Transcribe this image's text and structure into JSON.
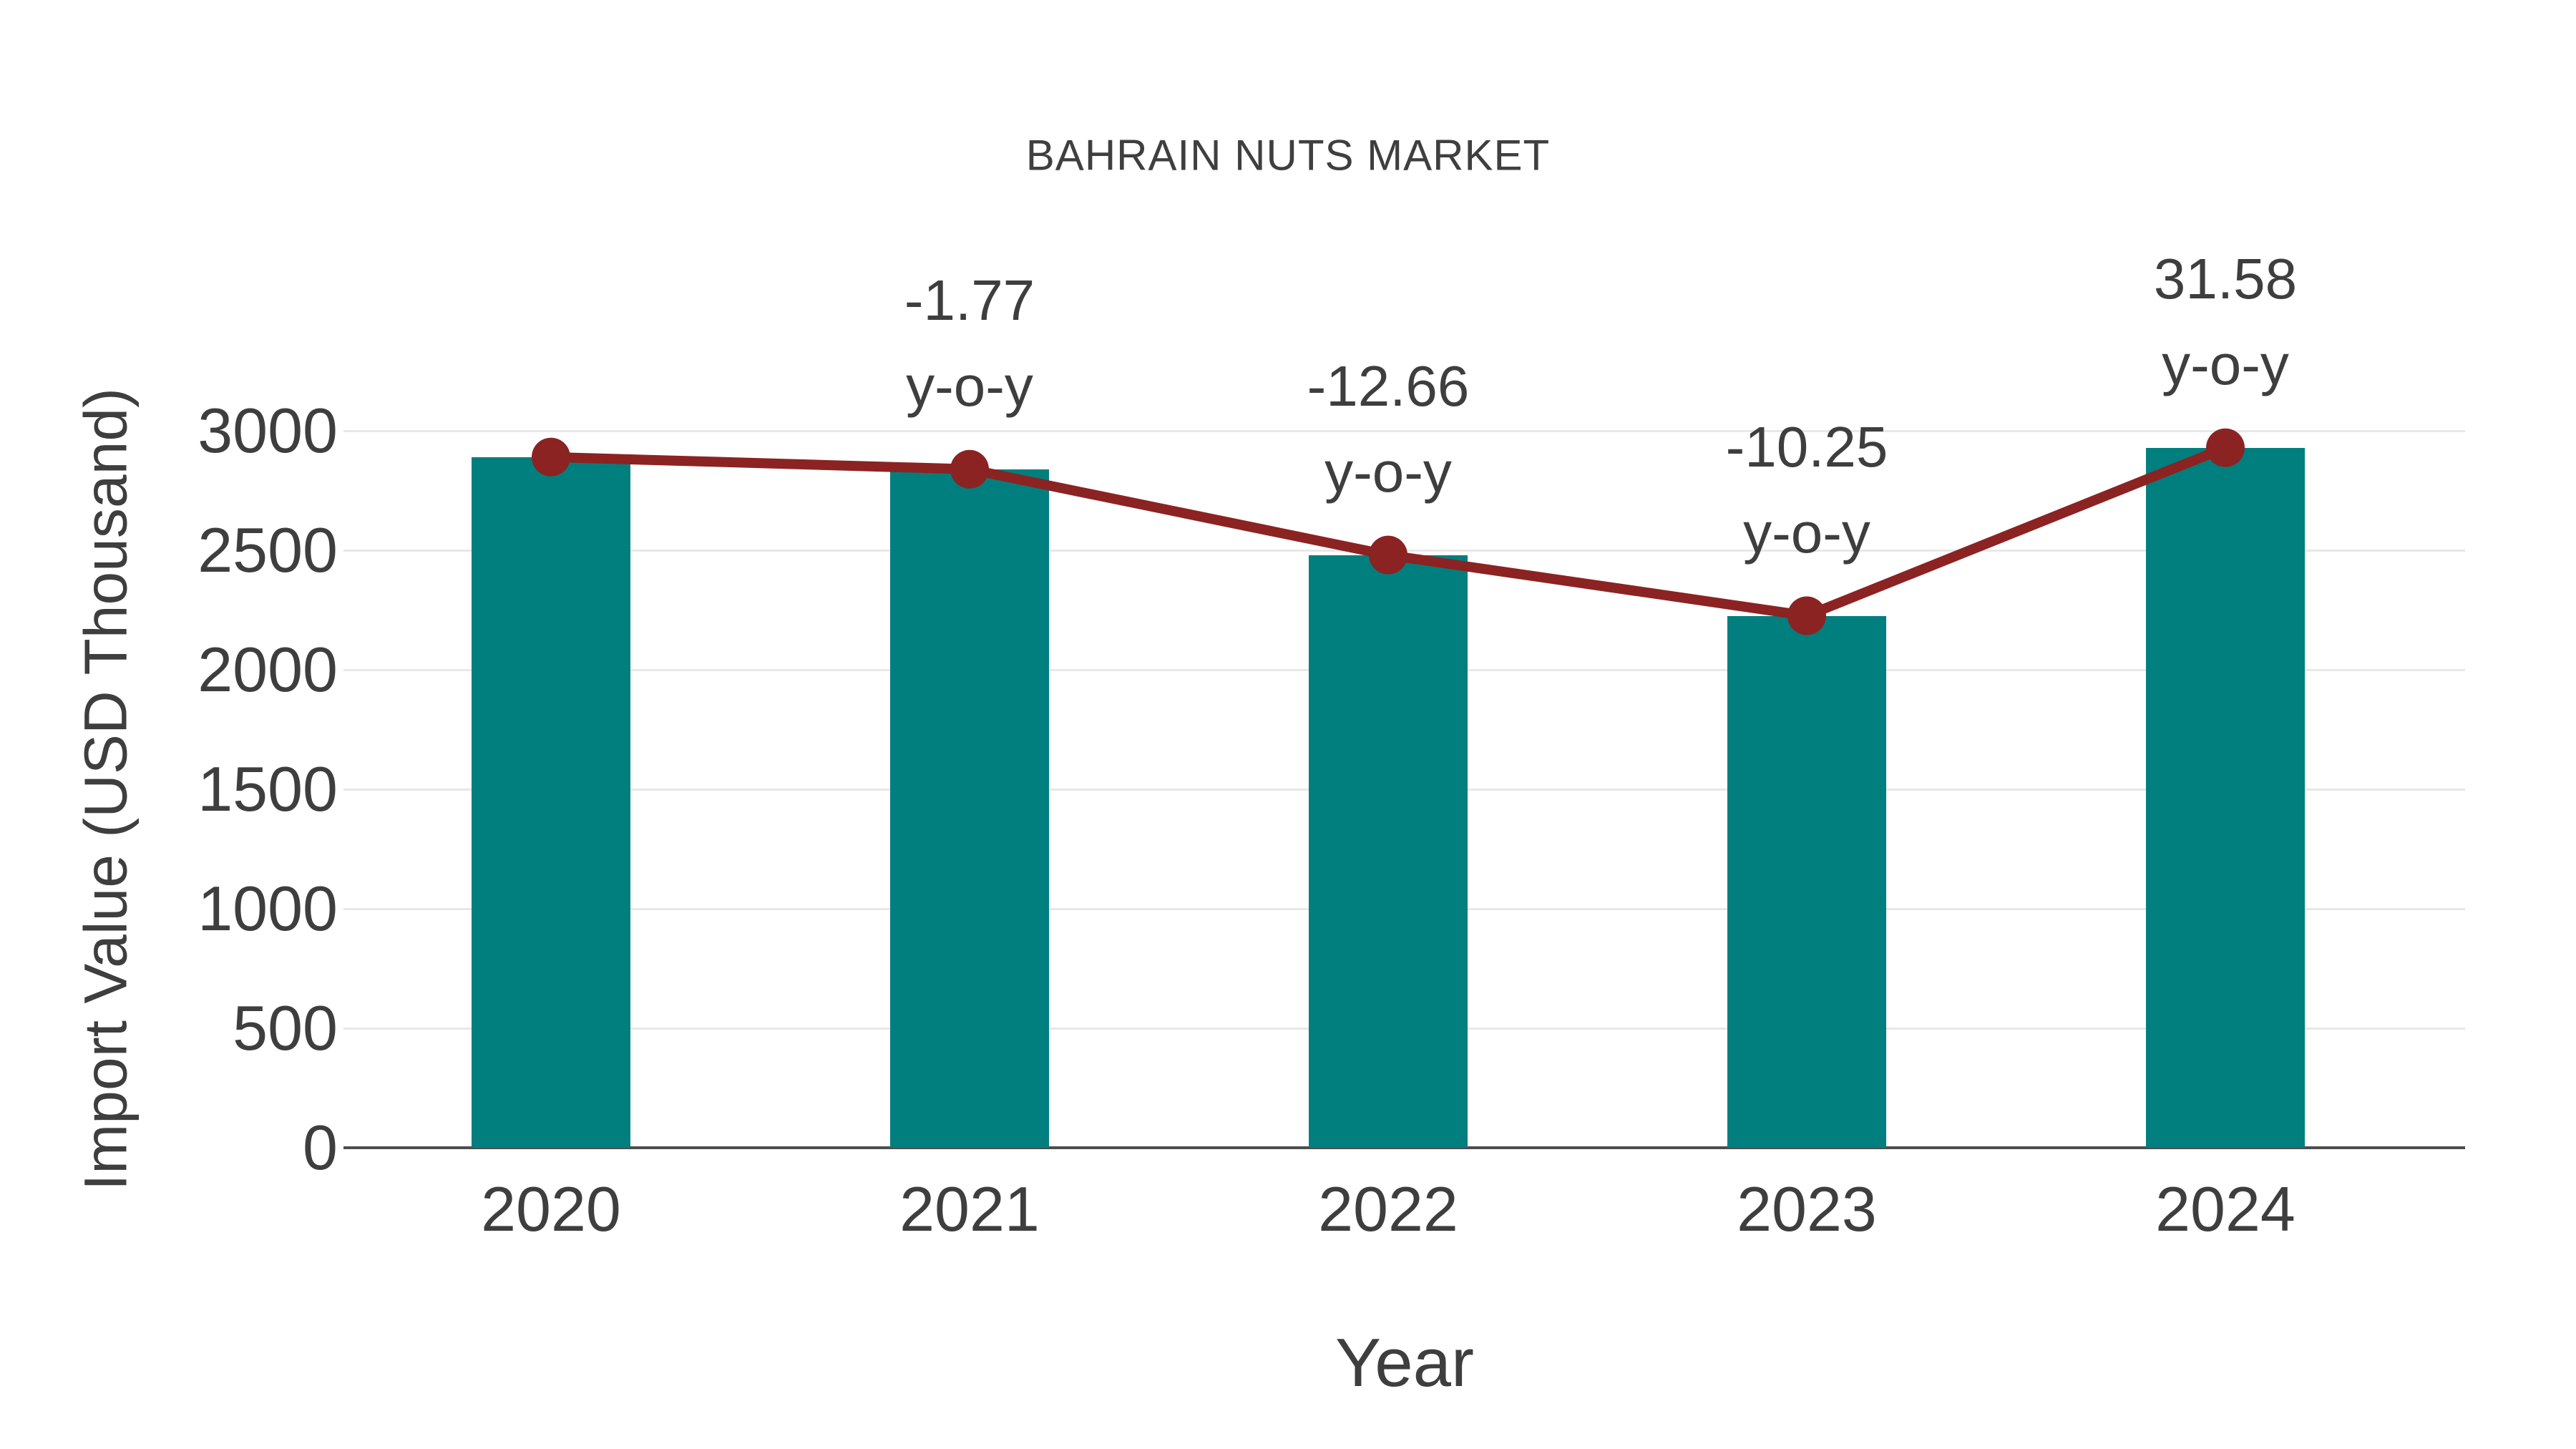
{
  "chart_data": {
    "type": "bar",
    "title": "BAHRAIN NUTS MARKET",
    "xlabel": "Year",
    "ylabel": "Import Value (USD Thousand)",
    "categories": [
      "2020",
      "2021",
      "2022",
      "2023",
      "2024"
    ],
    "series": [
      {
        "name": "Import Value",
        "type": "bar",
        "values": [
          2890,
          2839,
          2480,
          2226,
          2929
        ]
      },
      {
        "name": "Year-over-year trend",
        "type": "line",
        "values": [
          2890,
          2839,
          2480,
          2226,
          2929
        ]
      }
    ],
    "yticks": [
      "0",
      "500",
      "1000",
      "1500",
      "2000",
      "2500",
      "3000"
    ],
    "ylim": [
      0,
      3200
    ],
    "grid": true,
    "legend_position": "none",
    "annotations": [
      {
        "category": "2021",
        "value_label": "-1.77",
        "suffix": "y-o-y"
      },
      {
        "category": "2022",
        "value_label": "-12.66",
        "suffix": "y-o-y"
      },
      {
        "category": "2023",
        "value_label": "-10.25",
        "suffix": "y-o-y"
      },
      {
        "category": "2024",
        "value_label": "31.58",
        "suffix": "y-o-y"
      }
    ],
    "colors": {
      "bar": "#017f7e",
      "line": "#8b2322",
      "marker": "#8b2322",
      "text": "#3e3e3e",
      "grid": "#e8e8e8",
      "axis": "#4d4d4d",
      "background": "#ffffff"
    }
  }
}
